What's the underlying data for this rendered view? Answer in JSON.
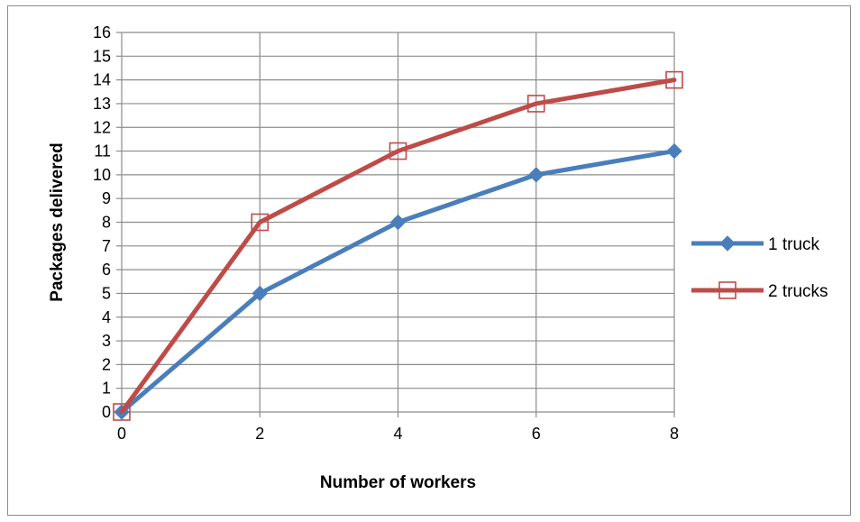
{
  "chart_data": {
    "type": "line",
    "xlabel": "Number of workers",
    "ylabel": "Packages delivered",
    "x": [
      0,
      2,
      4,
      6,
      8
    ],
    "xlim": [
      0,
      8
    ],
    "ylim": [
      0,
      16
    ],
    "x_ticks": [
      "0",
      "2",
      "4",
      "6",
      "8"
    ],
    "y_ticks": [
      "0",
      "1",
      "2",
      "3",
      "4",
      "5",
      "6",
      "7",
      "8",
      "9",
      "10",
      "11",
      "12",
      "13",
      "14",
      "15",
      "16"
    ],
    "grid": true,
    "legend_position": "right",
    "series": [
      {
        "name": "1 truck",
        "values": [
          0,
          5,
          8,
          10,
          11
        ],
        "color": "#4a7ebb",
        "marker": "diamond-filled"
      },
      {
        "name": "2 trucks",
        "values": [
          0,
          8,
          11,
          13,
          14
        ],
        "color": "#be4b48",
        "marker": "square-open"
      }
    ]
  }
}
